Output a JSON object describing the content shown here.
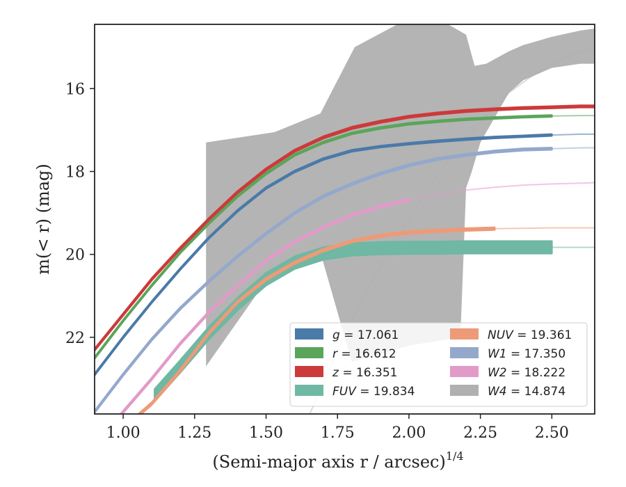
{
  "chart_data": {
    "type": "line",
    "title": "",
    "xlabel_main": "(Semi-major axis r / arcsec)",
    "xlabel_sup": "1/4",
    "ylabel": "m(< r) (mag)",
    "xlim": [
      0.9,
      2.65
    ],
    "ylim": [
      23.85,
      14.45
    ],
    "y_inverted": true,
    "grid": false,
    "legend_position": "lower-right",
    "legend_columns": 2,
    "xticks": [
      1.0,
      1.25,
      1.5,
      1.75,
      2.0,
      2.25,
      2.5
    ],
    "xtick_labels": [
      "1.00",
      "1.25",
      "1.50",
      "1.75",
      "2.00",
      "2.25",
      "2.50"
    ],
    "yticks": [
      16,
      18,
      20,
      22
    ],
    "ytick_labels": [
      "16",
      "18",
      "20",
      "22"
    ],
    "series": [
      {
        "name": "g = 17.061",
        "label_var": "g",
        "label_val": "17.061",
        "color": "#4a7aa8",
        "x": [
          0.9,
          1.0,
          1.1,
          1.2,
          1.3,
          1.4,
          1.5,
          1.6,
          1.7,
          1.8,
          1.9,
          2.0,
          2.1,
          2.2,
          2.3,
          2.4,
          2.5,
          2.6,
          2.65
        ],
        "y": [
          22.9,
          22.0,
          21.15,
          20.35,
          19.6,
          18.95,
          18.4,
          18.0,
          17.7,
          17.5,
          17.4,
          17.33,
          17.27,
          17.22,
          17.18,
          17.15,
          17.12,
          17.1,
          17.1
        ],
        "band_width": 0.04,
        "extrap_from": 2.5
      },
      {
        "name": "r = 16.612",
        "label_var": "r",
        "label_val": "16.612",
        "color": "#5aa55a",
        "x": [
          0.9,
          1.0,
          1.1,
          1.2,
          1.3,
          1.4,
          1.5,
          1.6,
          1.7,
          1.8,
          1.9,
          2.0,
          2.1,
          2.2,
          2.3,
          2.4,
          2.5,
          2.6,
          2.65
        ],
        "y": [
          22.5,
          21.6,
          20.75,
          19.95,
          19.25,
          18.6,
          18.05,
          17.6,
          17.3,
          17.08,
          16.95,
          16.85,
          16.79,
          16.74,
          16.71,
          16.68,
          16.66,
          16.65,
          16.65
        ],
        "band_width": 0.04,
        "extrap_from": 2.55
      },
      {
        "name": "z = 16.351",
        "label_var": "z",
        "label_val": "16.351",
        "color": "#cc3a3a",
        "x": [
          0.9,
          1.0,
          1.1,
          1.2,
          1.3,
          1.4,
          1.5,
          1.6,
          1.7,
          1.8,
          1.9,
          2.0,
          2.1,
          2.2,
          2.3,
          2.4,
          2.5,
          2.6,
          2.65
        ],
        "y": [
          22.3,
          21.45,
          20.6,
          19.85,
          19.15,
          18.5,
          17.95,
          17.5,
          17.18,
          16.95,
          16.8,
          16.68,
          16.6,
          16.54,
          16.5,
          16.47,
          16.45,
          16.43,
          16.43
        ],
        "band_width": 0.05,
        "extrap_from": 2.65
      },
      {
        "name": "FUV = 19.834",
        "label_var": "FUV",
        "label_val": "19.834",
        "color": "#6fb8a3",
        "x": [
          1.11,
          1.2,
          1.3,
          1.4,
          1.5,
          1.6,
          1.7,
          1.8,
          1.9,
          2.0,
          2.1,
          2.2,
          2.3,
          2.4,
          2.5,
          2.55,
          2.6,
          2.65
        ],
        "y": [
          23.4,
          22.7,
          21.9,
          21.2,
          20.6,
          20.2,
          19.98,
          19.88,
          19.85,
          19.84,
          19.84,
          19.83,
          19.83,
          19.83,
          19.83,
          19.83,
          19.83,
          19.83
        ],
        "band_width": 0.3,
        "extrap_from": 2.5
      },
      {
        "name": "NUV = 19.361",
        "label_var": "NUV",
        "label_val": "19.361",
        "color": "#ee9a78",
        "x": [
          1.0,
          1.1,
          1.2,
          1.3,
          1.4,
          1.5,
          1.6,
          1.7,
          1.8,
          1.9,
          2.0,
          2.1,
          2.2,
          2.3,
          2.4,
          2.5,
          2.6,
          2.65
        ],
        "y": [
          24.2,
          23.6,
          22.8,
          21.9,
          21.15,
          20.6,
          20.2,
          19.9,
          19.68,
          19.55,
          19.47,
          19.43,
          19.4,
          19.38,
          19.37,
          19.36,
          19.36,
          19.36
        ],
        "band_width": 0.06,
        "extrap_from": 2.3
      },
      {
        "name": "W1 = 17.350",
        "label_var": "W1",
        "label_val": "17.350",
        "color": "#94a8cc",
        "x": [
          0.9,
          1.0,
          1.1,
          1.2,
          1.3,
          1.4,
          1.5,
          1.6,
          1.7,
          1.8,
          1.9,
          2.0,
          2.1,
          2.2,
          2.3,
          2.4,
          2.5,
          2.6,
          2.65
        ],
        "y": [
          23.8,
          22.9,
          22.05,
          21.3,
          20.65,
          20.05,
          19.5,
          19.0,
          18.6,
          18.3,
          18.05,
          17.85,
          17.7,
          17.6,
          17.52,
          17.47,
          17.45,
          17.43,
          17.43
        ],
        "band_width": 0.05,
        "extrap_from": 2.5
      },
      {
        "name": "W2 = 18.222",
        "label_var": "W2",
        "label_val": "18.222",
        "color": "#e29ac9",
        "x": [
          0.95,
          1.0,
          1.1,
          1.2,
          1.3,
          1.4,
          1.5,
          1.6,
          1.7,
          1.8,
          1.9,
          2.0,
          2.1,
          2.2,
          2.3,
          2.4,
          2.5,
          2.6,
          2.65
        ],
        "y": [
          24.2,
          23.8,
          23.0,
          22.15,
          21.4,
          20.75,
          20.15,
          19.7,
          19.35,
          19.05,
          18.85,
          18.68,
          18.55,
          18.45,
          18.38,
          18.33,
          18.3,
          18.28,
          18.27
        ],
        "band_width": 0.05,
        "extrap_from": 2.0
      },
      {
        "name": "W4 = 14.874",
        "label_var": "W4",
        "label_val": "14.874",
        "color": "#b0b0b0",
        "band_x": [
          1.29,
          1.53,
          1.69,
          1.81,
          2.0,
          2.06,
          2.1,
          2.2,
          2.23,
          2.27,
          2.35,
          2.4,
          2.5,
          2.6,
          2.65
        ],
        "band_upper": [
          17.3,
          17.05,
          16.6,
          15.0,
          14.3,
          14.3,
          14.3,
          14.7,
          15.45,
          15.4,
          15.1,
          14.95,
          14.75,
          14.6,
          14.55
        ],
        "band_lower_x": [
          2.65,
          2.6,
          2.5,
          2.4,
          2.35,
          2.3,
          2.25,
          2.22,
          2.2,
          2.18,
          2.0,
          1.8,
          1.69,
          1.53,
          1.29,
          1.29
        ],
        "band_lower": [
          15.4,
          15.4,
          15.5,
          15.8,
          16.1,
          16.7,
          17.3,
          18.0,
          18.4,
          22.0,
          22.2,
          22.6,
          19.95,
          20.35,
          22.7,
          17.3
        ],
        "line_x": [
          1.65,
          1.75,
          1.85,
          1.95,
          2.05,
          2.15,
          2.25,
          2.35,
          2.45,
          2.55,
          2.65
        ],
        "line_y": [
          23.9,
          22.3,
          20.9,
          19.7,
          18.6,
          17.6,
          16.8,
          16.1,
          15.6,
          15.25,
          15.0
        ]
      }
    ]
  }
}
